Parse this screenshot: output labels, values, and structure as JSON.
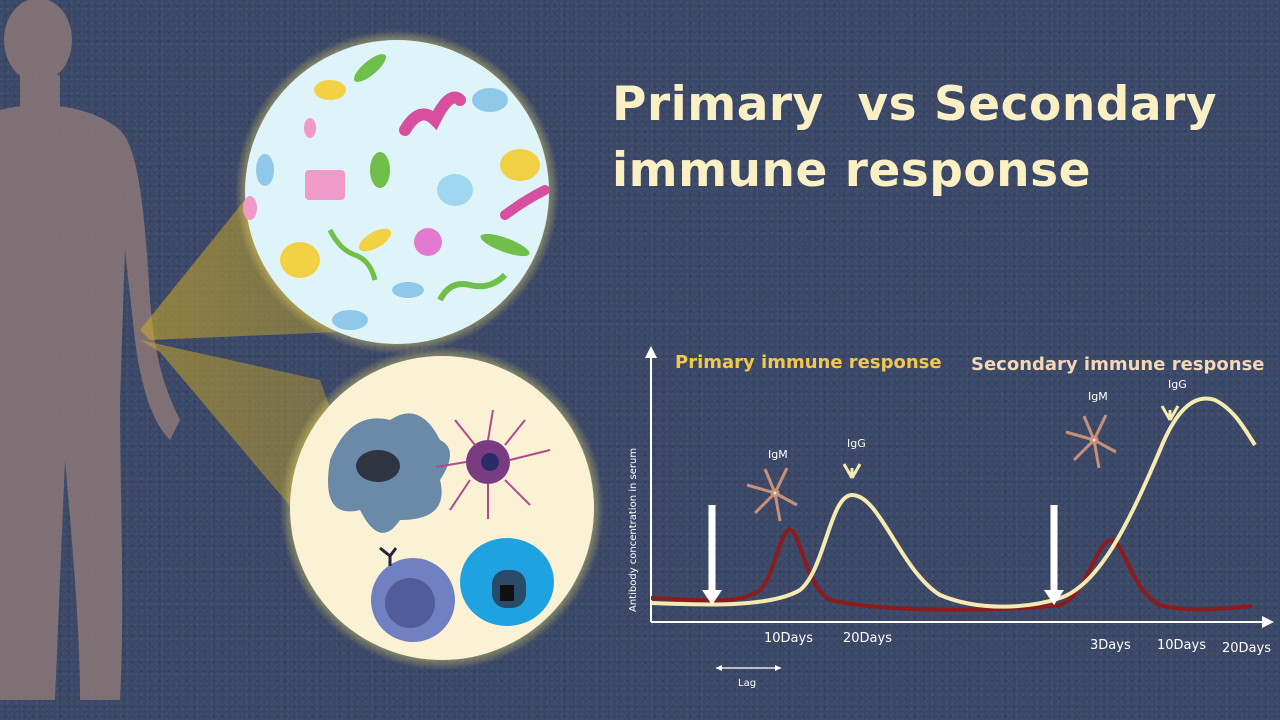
{
  "title": {
    "line1": "Primary  vs Secondary",
    "line2": "immune response"
  },
  "chart": {
    "primary_heading": "Primary  immune response",
    "secondary_heading": "Secondary immune response",
    "ylabel": "Antibody concentration in serum",
    "primary_ticks": [
      "10Days",
      "20Days"
    ],
    "secondary_ticks": [
      "3Days",
      "10Days",
      "20Days"
    ],
    "lag_label": "Lag",
    "igm_label_1": "IgM",
    "igg_label_1": "IgG",
    "igm_label_2": "IgM",
    "igg_label_2": "IgG"
  },
  "colors": {
    "background": "#3a4766",
    "title": "#fbf0c4",
    "primary_heading": "#f2c84b",
    "secondary_heading": "#f4d6b8",
    "igm_curve": "#8a1c1c",
    "igg_curve": "#f6eab0",
    "antibody": "#c8907a"
  }
}
